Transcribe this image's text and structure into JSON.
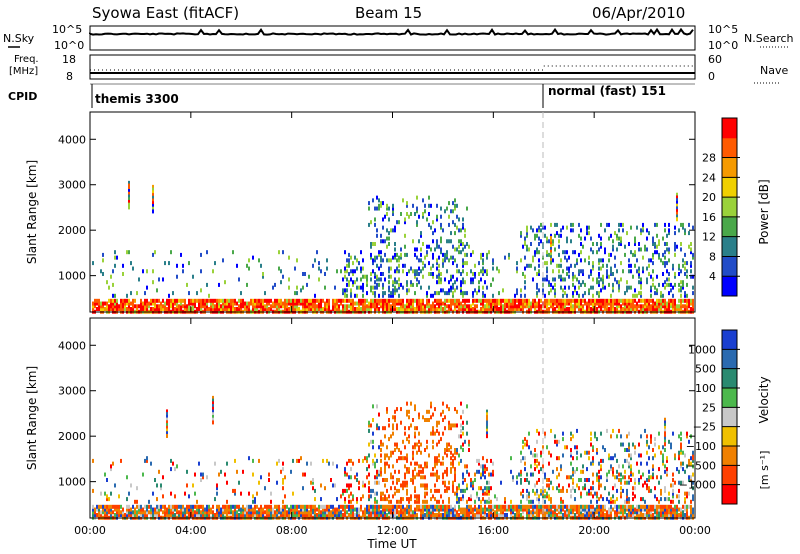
{
  "chart_data": [
    {
      "type": "line",
      "header": {
        "station": "Syowa East (fitACF)",
        "beam": "Beam 15",
        "date": "06/Apr/2010"
      },
      "panel": "noise-search",
      "left_label": "N.Sky",
      "left_ticks": [
        "10^5",
        "10^0"
      ],
      "right_label": "N.Search",
      "right_ticks": [
        "10^5",
        "10^0"
      ],
      "series": [
        {
          "name": "N.Sky",
          "level": 0.85
        }
      ]
    },
    {
      "type": "line",
      "panel": "freq-nave",
      "left_label_top": "Freq.",
      "left_label_bottom": "[MHz]",
      "left_ticks": [
        "18",
        "8"
      ],
      "right_label": "Nave",
      "right_ticks": [
        "60",
        "0"
      ],
      "series": [
        {
          "name": "Freq",
          "level_before": 0.3,
          "level_after": 0.3
        },
        {
          "name": "Nave",
          "level_before": 0.6,
          "level_after": 0.9
        }
      ]
    },
    {
      "type": "table",
      "panel": "cpid",
      "label": "CPID",
      "segments": [
        {
          "name": "themis 3300",
          "start": 0,
          "end": 18
        },
        {
          "name": "normal (fast) 151",
          "start": 18,
          "end": 24
        }
      ]
    },
    {
      "type": "heatmap",
      "panel": "power",
      "ylabel": "Slant Range [km]",
      "ylim": [
        200,
        4600
      ],
      "yticks": [
        1000,
        2000,
        3000,
        4000
      ],
      "xlim": [
        0,
        24
      ],
      "colorbar": {
        "label": "Power [dB]",
        "ticks": [
          "4",
          "8",
          "12",
          "16",
          "20",
          "24",
          "28"
        ],
        "colors": [
          "#0000ff",
          "#224cc8",
          "#2a7f8a",
          "#4aa84a",
          "#9ad23a",
          "#f0d000",
          "#f59a00",
          "#ff5a00",
          "#ff0000"
        ]
      }
    },
    {
      "type": "heatmap",
      "panel": "velocity",
      "ylabel": "Slant Range [km]",
      "ylim": [
        200,
        4600
      ],
      "yticks": [
        1000,
        2000,
        3000,
        4000
      ],
      "xlim": [
        0,
        24
      ],
      "xticks": [
        "00:00",
        "04:00",
        "08:00",
        "12:00",
        "16:00",
        "20:00",
        "00:00"
      ],
      "xlabel": "Time UT",
      "colorbar": {
        "label": "Velocity",
        "unit": "[m s⁻¹]",
        "ticks": [
          "1000",
          "500",
          "100",
          "25",
          "−25",
          "−100",
          "−500",
          "−1000"
        ],
        "colors": [
          "#1a3fd0",
          "#2a6ab0",
          "#2a8a70",
          "#4cb84c",
          "#c8c8c8",
          "#f0c000",
          "#f08000",
          "#ff4000",
          "#ff0000"
        ]
      }
    }
  ],
  "time_marker_hour": 18
}
